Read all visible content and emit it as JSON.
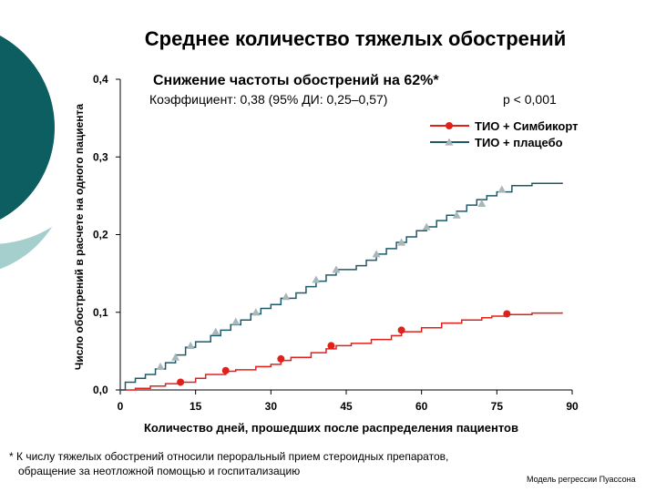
{
  "title": "Среднее количество тяжелых обострений",
  "subtitle": "Снижение частоты обострений на 62%*",
  "coef_text": "Коэффициент: 0,38 (95% ДИ: 0,25–0,57)",
  "p_text": "p < 0,001",
  "footnote_line1": "* К числу тяжелых обострений относили пероральный прием стероидных препаратов,",
  "footnote_line2": "обращение за неотложной помощью и госпитализацию",
  "model_note": "Модель регрессии Пуассона",
  "colors": {
    "red": "#e0211b",
    "teal": "#1d5a6a",
    "marker_gray": "#a9b7ba",
    "deco_dark": "#0d5e60",
    "deco_light": "#a4cfcc"
  },
  "chart_data": {
    "type": "line",
    "xlabel": "Количество дней, прошедших после распределения пациентов",
    "ylabel": "Число обострений в расчете на одного пациента",
    "xlim": [
      0,
      90
    ],
    "ylim": [
      0,
      0.4
    ],
    "x_ticks": [
      {
        "v": 0,
        "label": "0"
      },
      {
        "v": 15,
        "label": "15"
      },
      {
        "v": 30,
        "label": "30"
      },
      {
        "v": 45,
        "label": "45"
      },
      {
        "v": 60,
        "label": "60"
      },
      {
        "v": 75,
        "label": "75"
      },
      {
        "v": 90,
        "label": "90"
      }
    ],
    "y_ticks": [
      {
        "v": 0,
        "label": "0,0"
      },
      {
        "v": 0.1,
        "label": "0,1"
      },
      {
        "v": 0.2,
        "label": "0,2"
      },
      {
        "v": 0.3,
        "label": "0,3"
      },
      {
        "v": 0.4,
        "label": "0,4"
      }
    ],
    "legend_position": "top-right",
    "series": [
      {
        "name": "ТИО + Симбикорт",
        "color": "#e0211b",
        "marker": "circle",
        "points": [
          [
            0,
            0
          ],
          [
            3,
            0.002
          ],
          [
            6,
            0.005
          ],
          [
            9,
            0.008
          ],
          [
            12,
            0.01
          ],
          [
            15,
            0.015
          ],
          [
            17,
            0.02
          ],
          [
            21,
            0.024
          ],
          [
            23,
            0.026
          ],
          [
            27,
            0.03
          ],
          [
            30,
            0.033
          ],
          [
            32,
            0.038
          ],
          [
            34,
            0.042
          ],
          [
            38,
            0.048
          ],
          [
            41,
            0.053
          ],
          [
            43,
            0.057
          ],
          [
            46,
            0.06
          ],
          [
            50,
            0.065
          ],
          [
            54,
            0.07
          ],
          [
            56,
            0.075
          ],
          [
            60,
            0.08
          ],
          [
            64,
            0.086
          ],
          [
            68,
            0.09
          ],
          [
            72,
            0.093
          ],
          [
            74,
            0.095
          ],
          [
            77,
            0.097
          ],
          [
            82,
            0.099
          ],
          [
            88,
            0.1
          ]
        ],
        "marker_points": [
          [
            12,
            0.01
          ],
          [
            21,
            0.025
          ],
          [
            32,
            0.04
          ],
          [
            42,
            0.057
          ],
          [
            56,
            0.077
          ],
          [
            77,
            0.098
          ]
        ]
      },
      {
        "name": "ТИО + плацебо",
        "color": "#1d5a6a",
        "marker": "triangle",
        "points": [
          [
            0,
            0
          ],
          [
            1,
            0.01
          ],
          [
            3,
            0.015
          ],
          [
            5,
            0.02
          ],
          [
            7,
            0.027
          ],
          [
            9,
            0.035
          ],
          [
            11,
            0.045
          ],
          [
            13,
            0.055
          ],
          [
            15,
            0.062
          ],
          [
            18,
            0.07
          ],
          [
            20,
            0.077
          ],
          [
            22,
            0.084
          ],
          [
            24,
            0.09
          ],
          [
            26,
            0.098
          ],
          [
            28,
            0.105
          ],
          [
            30,
            0.11
          ],
          [
            32,
            0.118
          ],
          [
            35,
            0.125
          ],
          [
            37,
            0.133
          ],
          [
            39,
            0.14
          ],
          [
            41,
            0.148
          ],
          [
            43,
            0.155
          ],
          [
            47,
            0.16
          ],
          [
            49,
            0.167
          ],
          [
            51,
            0.175
          ],
          [
            53,
            0.182
          ],
          [
            55,
            0.19
          ],
          [
            57,
            0.197
          ],
          [
            59,
            0.205
          ],
          [
            61,
            0.21
          ],
          [
            63,
            0.218
          ],
          [
            65,
            0.225
          ],
          [
            67,
            0.23
          ],
          [
            69,
            0.238
          ],
          [
            71,
            0.245
          ],
          [
            73,
            0.25
          ],
          [
            75,
            0.255
          ],
          [
            78,
            0.263
          ],
          [
            82,
            0.266
          ],
          [
            88,
            0.267
          ]
        ],
        "marker_points": [
          [
            8,
            0.03
          ],
          [
            11,
            0.042
          ],
          [
            14,
            0.057
          ],
          [
            19,
            0.075
          ],
          [
            23,
            0.088
          ],
          [
            27,
            0.1
          ],
          [
            33,
            0.12
          ],
          [
            39,
            0.142
          ],
          [
            43,
            0.155
          ],
          [
            51,
            0.175
          ],
          [
            56,
            0.19
          ],
          [
            61,
            0.21
          ],
          [
            67,
            0.225
          ],
          [
            72,
            0.24
          ],
          [
            76,
            0.258
          ]
        ]
      }
    ]
  }
}
